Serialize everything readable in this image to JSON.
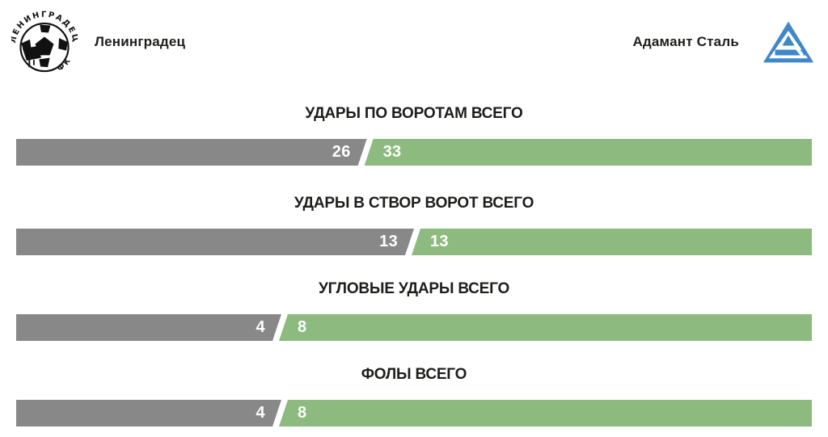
{
  "header": {
    "home": {
      "name": "Ленинградец",
      "logo": "leningradets-soccer-ball-crest"
    },
    "away": {
      "name": "Адамант Сталь",
      "logo": "adamant-steel-triangle-crest"
    }
  },
  "stats": [
    {
      "label": "УДАРЫ ПО ВОРОТАМ ВСЕГО",
      "home": 26,
      "away": 33
    },
    {
      "label": "УДАРЫ В СТВОР ВОРОТ ВСЕГО",
      "home": 13,
      "away": 13
    },
    {
      "label": "УГЛОВЫЕ УДАРЫ ВСЕГО",
      "home": 4,
      "away": 8
    },
    {
      "label": "ФОЛЫ ВСЕГО",
      "home": 4,
      "away": 8
    }
  ],
  "colors": {
    "home_bar": "#888888",
    "away_bar": "#8dba7f",
    "title_text": "#1d1d1b",
    "value_text": "#ffffff",
    "away_logo_blue": "#3f87c9",
    "home_logo_black": "#111111",
    "background": "#ffffff"
  },
  "chart_data": {
    "type": "bar",
    "variant": "head-to-head mirrored comparison bars",
    "title": "",
    "categories": [
      "УДАРЫ ПО ВОРОТАМ ВСЕГО",
      "УДАРЫ В СТВОР ВОРОТ ВСЕГО",
      "УГЛОВЫЕ УДАРЫ ВСЕГО",
      "ФОЛЫ ВСЕГО"
    ],
    "series": [
      {
        "name": "Ленинградец",
        "color": "#888888",
        "values": [
          26,
          13,
          4,
          4
        ]
      },
      {
        "name": "Адамант Сталь",
        "color": "#8dba7f",
        "values": [
          33,
          13,
          8,
          8
        ]
      }
    ],
    "value_labels_shown": true,
    "grid": false,
    "legend_position": "header-top"
  }
}
